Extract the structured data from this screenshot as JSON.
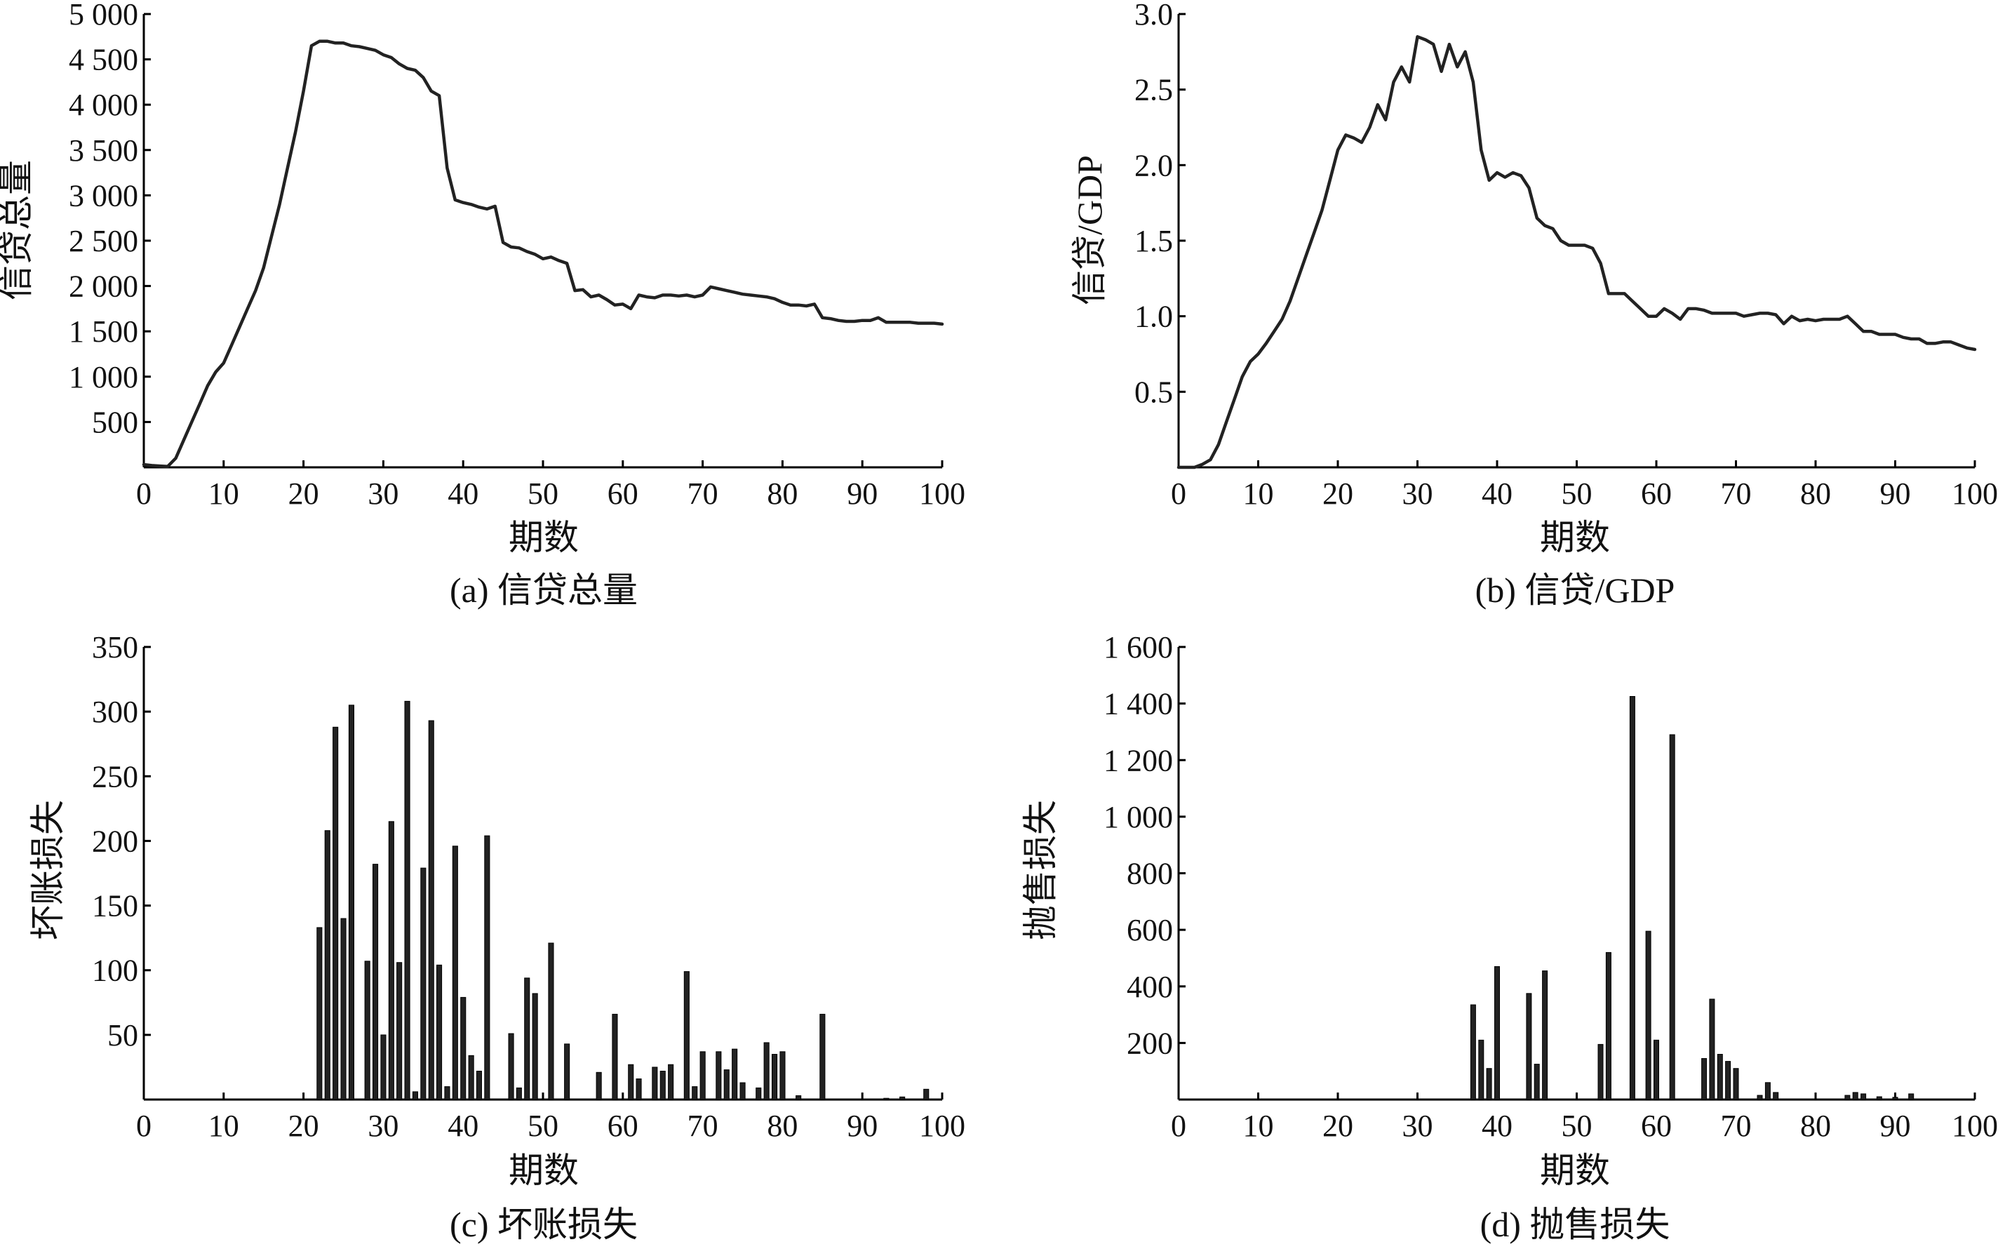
{
  "chart_data": [
    {
      "type": "line",
      "caption": "(a) 信贷总量",
      "xlabel": "期数",
      "ylabel": "信贷总量",
      "xlim": [
        0,
        100
      ],
      "ylim": [
        0,
        5000
      ],
      "xticks": [
        0,
        10,
        20,
        30,
        40,
        50,
        60,
        70,
        80,
        90,
        100
      ],
      "xtick_labels": [
        "0",
        "10",
        "20",
        "30",
        "40",
        "50",
        "60",
        "70",
        "80",
        "90",
        "100"
      ],
      "yticks": [
        500,
        1000,
        1500,
        2000,
        2500,
        3000,
        3500,
        4000,
        4500,
        5000
      ],
      "ytick_labels": [
        "500",
        "1 000",
        "1 500",
        "2 000",
        "2 500",
        "3 000",
        "3 500",
        "4 000",
        "4 500",
        "5 000"
      ],
      "grid": false,
      "color": "#222222",
      "series": [
        {
          "x": [
            0,
            1,
            2,
            3,
            4,
            5,
            6,
            7,
            8,
            9,
            10,
            11,
            12,
            13,
            14,
            15,
            16,
            17,
            18,
            19,
            20,
            21,
            22,
            23,
            24,
            25,
            26,
            27,
            28,
            29,
            30,
            31,
            32,
            33,
            34,
            35,
            36,
            37,
            38,
            39,
            40,
            41,
            42,
            43,
            44,
            45,
            46,
            47,
            48,
            49,
            50,
            51,
            52,
            53,
            54,
            55,
            56,
            57,
            58,
            59,
            60,
            61,
            62,
            63,
            64,
            65,
            66,
            67,
            68,
            69,
            70,
            71,
            72,
            73,
            74,
            75,
            76,
            77,
            78,
            79,
            80,
            81,
            82,
            83,
            84,
            85,
            86,
            87,
            88,
            89,
            90,
            91,
            92,
            93,
            94,
            95,
            96,
            97,
            98,
            99,
            100
          ],
          "y": [
            30,
            20,
            15,
            10,
            100,
            300,
            500,
            700,
            900,
            1050,
            1150,
            1350,
            1550,
            1750,
            1950,
            2200,
            2550,
            2900,
            3300,
            3700,
            4150,
            4650,
            4700,
            4700,
            4680,
            4680,
            4650,
            4640,
            4620,
            4600,
            4550,
            4520,
            4450,
            4400,
            4380,
            4300,
            4150,
            4100,
            3300,
            2950,
            2920,
            2900,
            2870,
            2850,
            2880,
            2480,
            2430,
            2420,
            2380,
            2350,
            2300,
            2320,
            2280,
            2250,
            1950,
            1960,
            1880,
            1900,
            1850,
            1790,
            1800,
            1750,
            1900,
            1880,
            1870,
            1900,
            1900,
            1890,
            1900,
            1880,
            1900,
            1990,
            1970,
            1950,
            1930,
            1910,
            1900,
            1890,
            1880,
            1860,
            1820,
            1790,
            1790,
            1780,
            1800,
            1650,
            1640,
            1620,
            1610,
            1610,
            1620,
            1620,
            1650,
            1600,
            1600,
            1600,
            1600,
            1590,
            1590,
            1590,
            1580
          ]
        }
      ]
    },
    {
      "type": "line",
      "caption": "(b) 信贷/GDP",
      "xlabel": "期数",
      "ylabel": "信贷/GDP",
      "xlim": [
        0,
        100
      ],
      "ylim": [
        0,
        3.0
      ],
      "xticks": [
        0,
        10,
        20,
        30,
        40,
        50,
        60,
        70,
        80,
        90,
        100
      ],
      "xtick_labels": [
        "0",
        "10",
        "20",
        "30",
        "40",
        "50",
        "60",
        "70",
        "80",
        "90",
        "100"
      ],
      "yticks": [
        0.5,
        1.0,
        1.5,
        2.0,
        2.5,
        3.0
      ],
      "ytick_labels": [
        "0.5",
        "1.0",
        "1.5",
        "2.0",
        "2.5",
        "3.0"
      ],
      "grid": false,
      "color": "#222222",
      "series": [
        {
          "x": [
            0,
            1,
            2,
            3,
            4,
            5,
            6,
            7,
            8,
            9,
            10,
            11,
            12,
            13,
            14,
            15,
            16,
            17,
            18,
            19,
            20,
            21,
            22,
            23,
            24,
            25,
            26,
            27,
            28,
            29,
            30,
            31,
            32,
            33,
            34,
            35,
            36,
            37,
            38,
            39,
            40,
            41,
            42,
            43,
            44,
            45,
            46,
            47,
            48,
            49,
            50,
            51,
            52,
            53,
            54,
            55,
            56,
            57,
            58,
            59,
            60,
            61,
            62,
            63,
            64,
            65,
            66,
            67,
            68,
            69,
            70,
            71,
            72,
            73,
            74,
            75,
            76,
            77,
            78,
            79,
            80,
            81,
            82,
            83,
            84,
            85,
            86,
            87,
            88,
            89,
            90,
            91,
            92,
            93,
            94,
            95,
            96,
            97,
            98,
            99,
            100
          ],
          "y": [
            0.0,
            0.0,
            0.0,
            0.02,
            0.05,
            0.15,
            0.3,
            0.45,
            0.6,
            0.7,
            0.75,
            0.82,
            0.9,
            0.98,
            1.1,
            1.25,
            1.4,
            1.55,
            1.7,
            1.9,
            2.1,
            2.2,
            2.18,
            2.15,
            2.25,
            2.4,
            2.3,
            2.55,
            2.65,
            2.55,
            2.85,
            2.83,
            2.8,
            2.62,
            2.8,
            2.65,
            2.75,
            2.55,
            2.1,
            1.9,
            1.95,
            1.92,
            1.95,
            1.93,
            1.85,
            1.65,
            1.6,
            1.58,
            1.5,
            1.47,
            1.47,
            1.47,
            1.45,
            1.35,
            1.15,
            1.15,
            1.15,
            1.1,
            1.05,
            1.0,
            1.0,
            1.05,
            1.02,
            0.98,
            1.05,
            1.05,
            1.04,
            1.02,
            1.02,
            1.02,
            1.02,
            1.0,
            1.01,
            1.02,
            1.02,
            1.01,
            0.95,
            1.0,
            0.97,
            0.98,
            0.97,
            0.98,
            0.98,
            0.98,
            1.0,
            0.95,
            0.9,
            0.9,
            0.88,
            0.88,
            0.88,
            0.86,
            0.85,
            0.85,
            0.82,
            0.82,
            0.83,
            0.83,
            0.81,
            0.79,
            0.78
          ]
        }
      ]
    },
    {
      "type": "bar",
      "caption": "(c) 坏账损失",
      "xlabel": "期数",
      "ylabel": "坏账损失",
      "xlim": [
        0,
        100
      ],
      "ylim": [
        0,
        350
      ],
      "xticks": [
        0,
        10,
        20,
        30,
        40,
        50,
        60,
        70,
        80,
        90,
        100
      ],
      "xtick_labels": [
        "0",
        "10",
        "20",
        "30",
        "40",
        "50",
        "60",
        "70",
        "80",
        "90",
        "100"
      ],
      "yticks": [
        50,
        100,
        150,
        200,
        250,
        300,
        350
      ],
      "ytick_labels": [
        "50",
        "100",
        "150",
        "200",
        "250",
        "300",
        "350"
      ],
      "grid": false,
      "color": "#222222",
      "series": [
        {
          "x": [
            22,
            23,
            24,
            25,
            26,
            28,
            29,
            30,
            31,
            32,
            33,
            34,
            35,
            36,
            37,
            38,
            39,
            40,
            41,
            42,
            43,
            46,
            47,
            48,
            49,
            51,
            53,
            57,
            59,
            61,
            62,
            64,
            65,
            66,
            68,
            69,
            70,
            72,
            73,
            74,
            75,
            77,
            78,
            79,
            80,
            82,
            85,
            93,
            95,
            98
          ],
          "y": [
            133,
            208,
            288,
            140,
            305,
            107,
            182,
            50,
            215,
            106,
            308,
            6,
            179,
            293,
            104,
            10,
            196,
            79,
            34,
            22,
            204,
            51,
            9,
            94,
            82,
            121,
            43,
            21,
            66,
            27,
            16,
            25,
            22,
            27,
            99,
            10,
            37,
            37,
            23,
            39,
            13,
            9,
            44,
            35,
            37,
            3,
            66,
            1,
            2,
            8
          ]
        }
      ]
    },
    {
      "type": "bar",
      "caption": "(d) 抛售损失",
      "xlabel": "期数",
      "ylabel": "抛售损失",
      "xlim": [
        0,
        100
      ],
      "ylim": [
        0,
        1600
      ],
      "xticks": [
        0,
        10,
        20,
        30,
        40,
        50,
        60,
        70,
        80,
        90,
        100
      ],
      "xtick_labels": [
        "0",
        "10",
        "20",
        "30",
        "40",
        "50",
        "60",
        "70",
        "80",
        "90",
        "100"
      ],
      "yticks": [
        200,
        400,
        600,
        800,
        1000,
        1200,
        1400,
        1600
      ],
      "ytick_labels": [
        "200",
        "400",
        "600",
        "800",
        "1 000",
        "1 200",
        "1 400",
        "1 600"
      ],
      "grid": false,
      "color": "#222222",
      "series": [
        {
          "x": [
            37,
            38,
            39,
            40,
            44,
            45,
            46,
            53,
            54,
            57,
            59,
            60,
            62,
            66,
            67,
            68,
            69,
            70,
            73,
            74,
            75,
            84,
            85,
            86,
            88,
            90,
            92
          ],
          "y": [
            335,
            210,
            110,
            470,
            375,
            125,
            455,
            195,
            520,
            1425,
            595,
            210,
            1290,
            145,
            355,
            160,
            135,
            110,
            15,
            60,
            25,
            15,
            25,
            20,
            10,
            8,
            20
          ]
        }
      ]
    }
  ]
}
